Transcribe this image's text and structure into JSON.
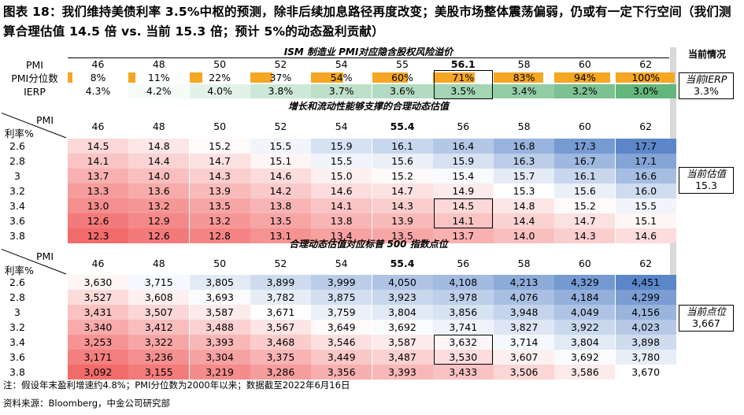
{
  "figure_title": "图表 18：我们维持美债利率 3.5%中枢的预测，除非后续加息路径再度改变；美股市场整体震荡偏弱，仍或有一定下行空间（我们测算合理估值 14.5 倍 vs. 当前 15.3 倍；预计 5%的动态盈利贡献）",
  "current_title": "当前情况",
  "section1": {
    "title": "ISM 制造业 PMI对应隐含股权风险溢价",
    "row_labels": {
      "pmi": "PMI",
      "pct": "PMI分位数",
      "ierp": "IERP"
    },
    "pmi": [
      "46",
      "48",
      "50",
      "52",
      "54",
      "55",
      "56.1",
      "58",
      "60",
      "62"
    ],
    "pct_labels": [
      "8%",
      "11%",
      "22%",
      "37%",
      "54%",
      "60%",
      "71%",
      "83%",
      "94%",
      "100%"
    ],
    "pct_values": [
      8,
      11,
      22,
      37,
      54,
      60,
      71,
      83,
      94,
      100
    ],
    "ierp": [
      "4.3%",
      "4.2%",
      "4.0%",
      "3.8%",
      "3.7%",
      "3.6%",
      "3.5%",
      "3.4%",
      "3.2%",
      "3.0%"
    ],
    "ierp_colors": [
      "#ffffff",
      "#f6fbf8",
      "#e3f2e9",
      "#cde8d7",
      "#bde0c9",
      "#b2dbc1",
      "#a3d4b4",
      "#93cda6",
      "#7cc191",
      "#63b67c"
    ]
  },
  "current_ierp": {
    "label": "当前IERP",
    "value": "3.3%"
  },
  "section2": {
    "title": "增长和流动性能够支撑的合理动态估值",
    "corner_top": "PMI",
    "corner_bottom": "利率%",
    "pmi": [
      "46",
      "48",
      "50",
      "52",
      "54",
      "55.4",
      "56",
      "58",
      "60",
      "62"
    ],
    "rates": [
      "2.6",
      "2.8",
      "3",
      "3.2",
      "3.4",
      "3.6",
      "3.8"
    ],
    "values": [
      [
        "14.5",
        "14.8",
        "15.2",
        "15.5",
        "15.9",
        "16.1",
        "16.4",
        "16.8",
        "17.3",
        "17.7"
      ],
      [
        "14.1",
        "14.4",
        "14.7",
        "15.1",
        "15.5",
        "15.6",
        "15.9",
        "16.3",
        "16.7",
        "17.1"
      ],
      [
        "13.7",
        "14.0",
        "14.3",
        "14.6",
        "15.0",
        "15.2",
        "15.4",
        "15.7",
        "16.1",
        "16.6"
      ],
      [
        "13.3",
        "13.6",
        "13.9",
        "14.2",
        "14.6",
        "14.7",
        "14.9",
        "15.3",
        "15.6",
        "16.0"
      ],
      [
        "13.0",
        "13.2",
        "13.5",
        "13.8",
        "14.1",
        "14.3",
        "14.5",
        "14.8",
        "15.2",
        "15.5"
      ],
      [
        "12.6",
        "12.9",
        "13.2",
        "13.5",
        "13.8",
        "13.9",
        "14.1",
        "14.4",
        "14.7",
        "15.1"
      ],
      [
        "12.3",
        "12.6",
        "12.8",
        "13.1",
        "13.4",
        "13.5",
        "13.7",
        "14.0",
        "14.3",
        "14.6"
      ]
    ]
  },
  "current_valuation": {
    "label": "当前估值",
    "value": "15.3"
  },
  "section3": {
    "title": "合理动态估值对应标普 500 指数点位",
    "corner_top": "PMI",
    "corner_bottom": "利率%",
    "pmi": [
      "46",
      "48",
      "50",
      "52",
      "54",
      "55.4",
      "56",
      "58",
      "60",
      "62"
    ],
    "rates": [
      "2.6",
      "2.8",
      "3",
      "3.2",
      "3.4",
      "3.6",
      "3.8"
    ],
    "values": [
      [
        "3,630",
        "3,715",
        "3,805",
        "3,899",
        "3,999",
        "4,050",
        "4,108",
        "4,213",
        "4,329",
        "4,451"
      ],
      [
        "3,527",
        "3,608",
        "3,693",
        "3,782",
        "3,875",
        "3,923",
        "3,978",
        "4,076",
        "4,184",
        "4,299"
      ],
      [
        "3,431",
        "3,507",
        "3,587",
        "3,671",
        "3,759",
        "3,804",
        "3,856",
        "3,948",
        "4,049",
        "4,156"
      ],
      [
        "3,340",
        "3,412",
        "3,488",
        "3,567",
        "3,649",
        "3,692",
        "3,741",
        "3,827",
        "3,922",
        "4,023"
      ],
      [
        "3,253",
        "3,322",
        "3,393",
        "3,468",
        "3,546",
        "3,587",
        "3,632",
        "3,714",
        "3,804",
        "3,898"
      ],
      [
        "3,171",
        "3,236",
        "3,304",
        "3,375",
        "3,449",
        "3,487",
        "3,530",
        "3,607",
        "3,692",
        "3,780"
      ],
      [
        "3,092",
        "3,155",
        "3,219",
        "3,286",
        "3,356",
        "3,393",
        "3,433",
        "3,506",
        "3,586",
        "3,670"
      ]
    ]
  },
  "current_index": {
    "label": "当前点位",
    "value": "3,667"
  },
  "note": "注：假设年末盈利增速约4.8%；PMI分位数为2000年以来；数据截至2022年6月16日",
  "source": "资料来源：Bloomberg，中金公司研究部",
  "colors": {
    "low": "#f26b6b",
    "mid": "#ffffff",
    "high": "#5b86c9",
    "bar": "#f5a623"
  }
}
